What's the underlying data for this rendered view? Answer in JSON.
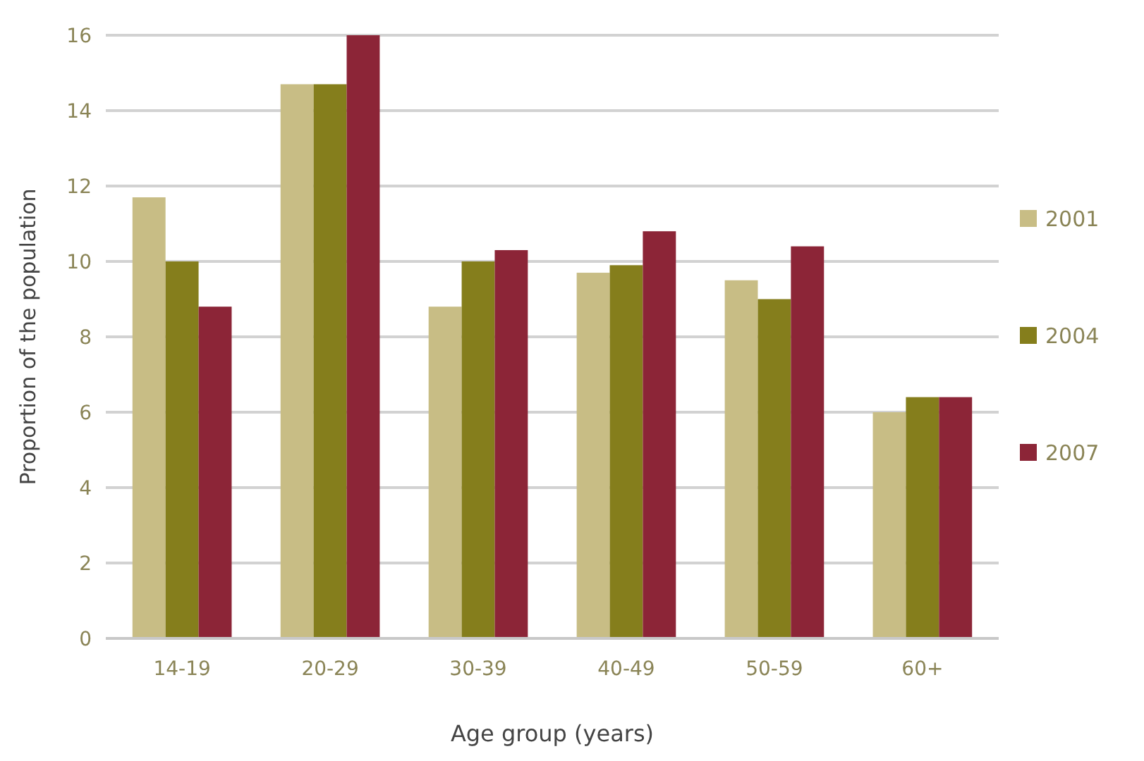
{
  "chart_data": {
    "type": "bar",
    "xlabel": "Age group (years)",
    "ylabel": "Proportion of the population",
    "categories": [
      "14-19",
      "20-29",
      "30-39",
      "40-49",
      "50-59",
      "60+"
    ],
    "series": [
      {
        "name": "2001",
        "color": "#c8bd85",
        "values": [
          11.7,
          14.7,
          8.8,
          9.7,
          9.5,
          6.0
        ]
      },
      {
        "name": "2004",
        "color": "#857e1c",
        "values": [
          10,
          14.7,
          10,
          9.9,
          9.0,
          6.4
        ]
      },
      {
        "name": "2007",
        "color": "#8c2537",
        "values": [
          8.8,
          16,
          10.3,
          10.8,
          10.4,
          6.4
        ]
      }
    ],
    "ylim": [
      0,
      16
    ],
    "yticks": [
      0,
      2,
      4,
      6,
      8,
      10,
      12,
      14,
      16
    ],
    "grid": "y",
    "legend": "right"
  }
}
